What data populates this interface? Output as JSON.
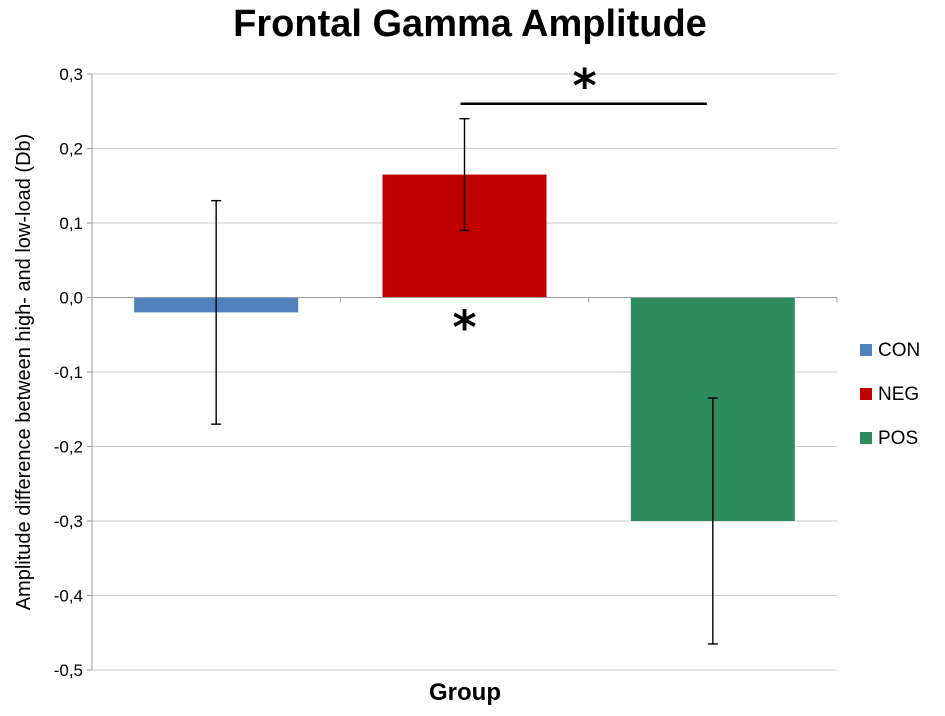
{
  "chart_data": {
    "type": "bar",
    "title": "Frontal Gamma Amplitude",
    "xlabel": "Group",
    "ylabel": "Amplitude difference between high- and low-load (Db)",
    "ylim": [
      -0.5,
      0.3
    ],
    "yticks": [
      0.3,
      0.2,
      0.1,
      0.0,
      -0.1,
      -0.2,
      -0.3,
      -0.4,
      -0.5
    ],
    "ytick_labels": [
      "0,3",
      "0,2",
      "0,1",
      "0,0",
      "-0,1",
      "-0,2",
      "-0,3",
      "-0,4",
      "-0,5"
    ],
    "grid": true,
    "legend_position": "right",
    "series": [
      {
        "name": "CON",
        "value": -0.02,
        "error_low": -0.17,
        "error_high": 0.13,
        "color": "#4f81bd"
      },
      {
        "name": "NEG",
        "value": 0.165,
        "error_low": 0.09,
        "error_high": 0.24,
        "color": "#c00000"
      },
      {
        "name": "POS",
        "value": -0.3,
        "error_low": -0.465,
        "error_high": -0.135,
        "color": "#2e8b5e"
      }
    ],
    "annotations": [
      {
        "text": "*",
        "type": "bracket",
        "from": "NEG",
        "to": "POS",
        "y": 0.26
      },
      {
        "text": "*",
        "type": "below-bar",
        "series": "NEG"
      }
    ]
  }
}
